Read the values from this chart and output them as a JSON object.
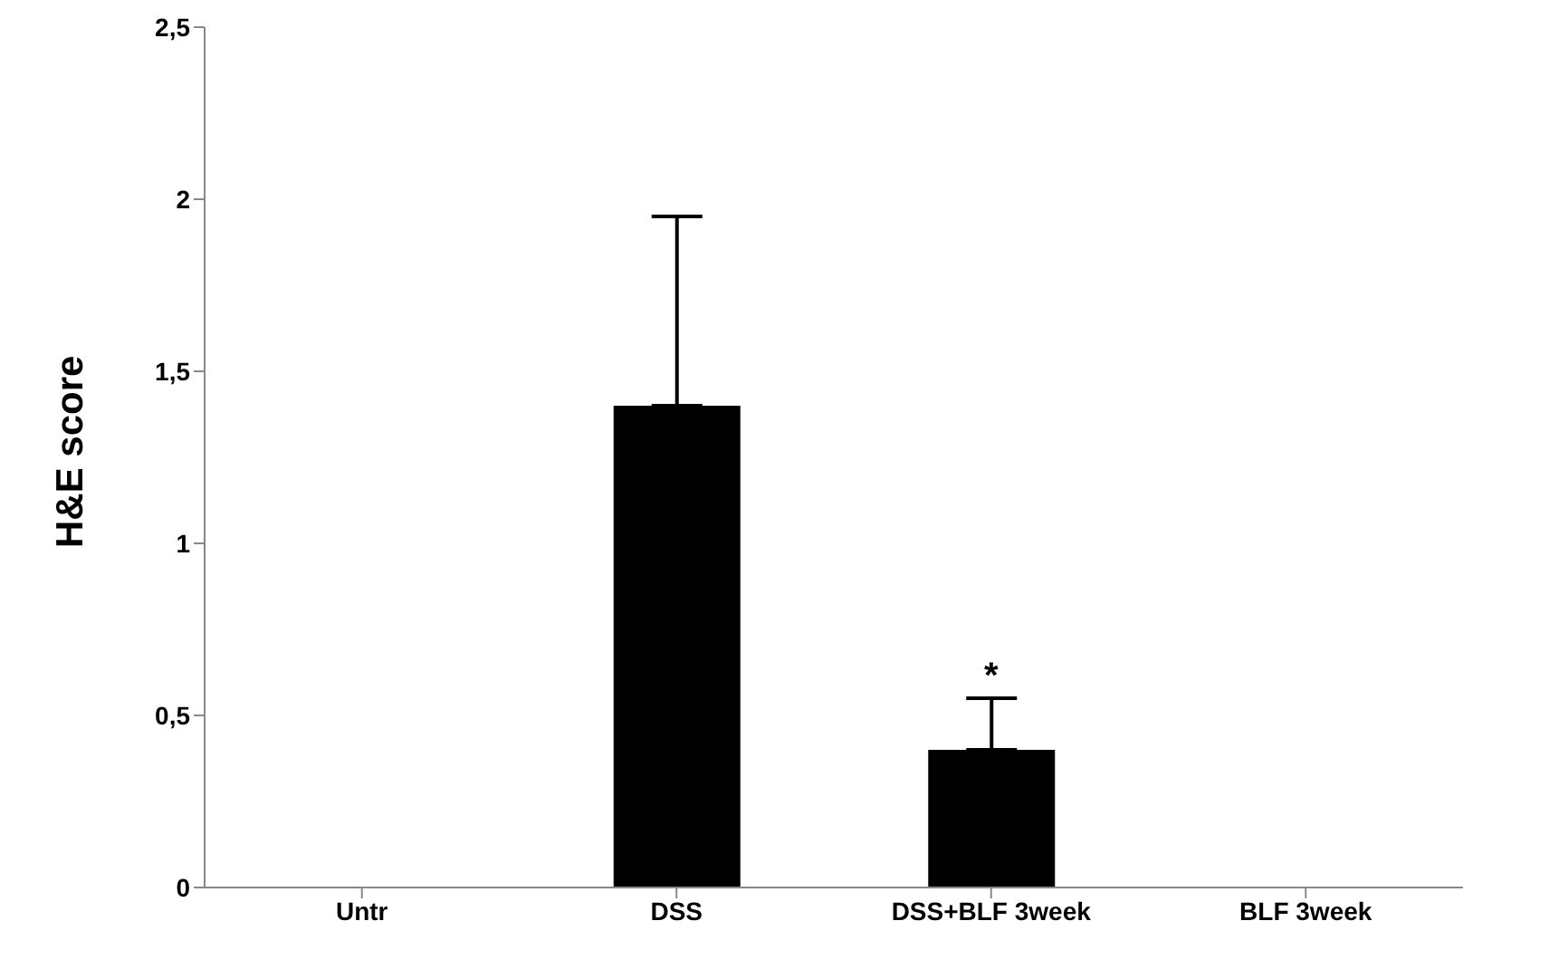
{
  "chart_data": {
    "type": "bar",
    "ylabel": "H&E score",
    "categories": [
      "Untr",
      "DSS",
      "DSS+BLF 3week",
      "BLF 3week"
    ],
    "values": [
      0,
      1.4,
      0.4,
      0
    ],
    "color": "#000000",
    "errors": [
      null,
      [
        1.4,
        1.95
      ],
      [
        0.4,
        0.55
      ],
      null
    ],
    "ylim": [
      0,
      2.5
    ],
    "yticks": [
      0,
      {
        "value": 0.5,
        "label": "0,5"
      },
      1,
      {
        "value": 1.5,
        "label": "1,5"
      },
      2,
      {
        "value": 2.5,
        "label": "2,5"
      }
    ],
    "annotations": [
      {
        "text": "*",
        "x": "DSS+BLF 3week",
        "y": 0.55
      }
    ],
    "grid": false,
    "legend": false
  }
}
